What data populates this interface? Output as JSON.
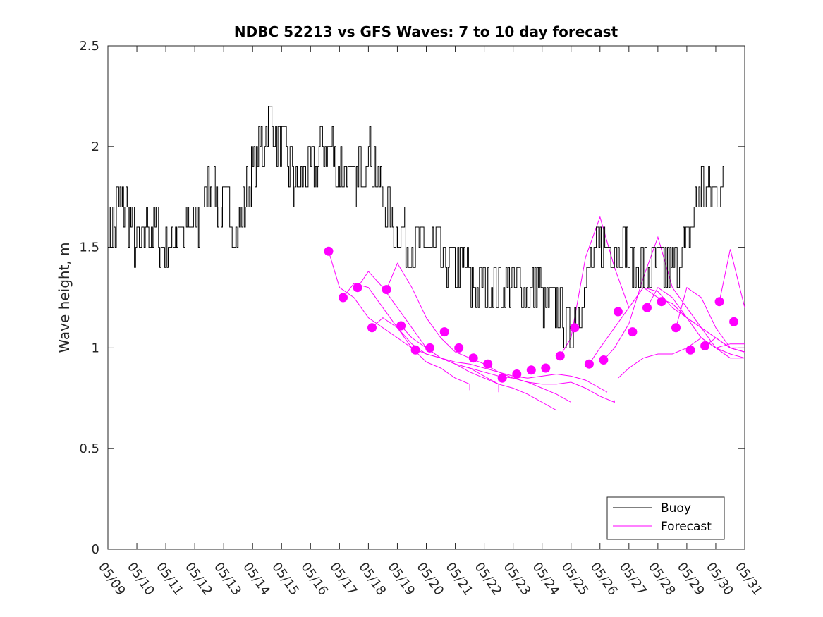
{
  "chart_data": {
    "type": "line",
    "title": "NDBC 52213 vs GFS Waves: 7 to 10 day forecast",
    "xlabel": "",
    "ylabel": "Wave height, m",
    "ylim": [
      0,
      2.5
    ],
    "yticks": [
      0,
      0.5,
      1,
      1.5,
      2,
      2.5
    ],
    "yticklabels": [
      "0",
      "0.5",
      "1",
      "1.5",
      "2",
      "2.5"
    ],
    "xlim": [
      "05/09",
      "05/31"
    ],
    "xticklabels": [
      "05/09",
      "05/10",
      "05/11",
      "05/12",
      "05/13",
      "05/14",
      "05/15",
      "05/16",
      "05/17",
      "05/18",
      "05/19",
      "05/20",
      "05/21",
      "05/22",
      "05/23",
      "05/24",
      "05/25",
      "05/26",
      "05/27",
      "05/28",
      "05/29",
      "05/30",
      "05/31"
    ],
    "grid": false,
    "legend": {
      "placement": "bottom-right",
      "entries": [
        "Buoy",
        "Forecast"
      ]
    },
    "colors": {
      "buoy": "#000000",
      "forecast": "#ff00ff"
    },
    "series": [
      {
        "name": "Buoy",
        "x": [
          "05/09 00:00",
          "05/09 12:00",
          "05/10 00:00",
          "05/10 12:00",
          "05/11 00:00",
          "05/11 12:00",
          "05/12 00:00",
          "05/12 12:00",
          "05/13 00:00",
          "05/13 12:00",
          "05/14 00:00",
          "05/14 12:00",
          "05/15 00:00",
          "05/15 12:00",
          "05/16 00:00",
          "05/16 12:00",
          "05/17 00:00",
          "05/17 12:00",
          "05/18 00:00",
          "05/18 12:00",
          "05/19 00:00",
          "05/19 12:00",
          "05/20 00:00",
          "05/20 12:00",
          "05/21 00:00",
          "05/21 12:00",
          "05/22 00:00",
          "05/22 12:00",
          "05/23 00:00",
          "05/23 12:00",
          "05/24 00:00",
          "05/24 12:00",
          "05/25 00:00",
          "05/25 12:00",
          "05/26 00:00",
          "05/26 12:00",
          "05/27 00:00",
          "05/27 12:00",
          "05/28 00:00",
          "05/28 12:00",
          "05/29 00:00",
          "05/29 12:00",
          "05/30 00:00",
          "05/30 06:00"
        ],
        "y": [
          1.6,
          1.7,
          1.5,
          1.6,
          1.5,
          1.6,
          1.6,
          1.8,
          1.7,
          1.6,
          1.9,
          2.1,
          2.0,
          1.8,
          1.9,
          2.0,
          1.9,
          1.8,
          2.0,
          1.7,
          1.6,
          1.5,
          1.5,
          1.45,
          1.4,
          1.35,
          1.3,
          1.25,
          1.25,
          1.3,
          1.25,
          1.2,
          1.1,
          1.3,
          1.5,
          1.5,
          1.45,
          1.4,
          1.4,
          1.4,
          1.5,
          1.8,
          1.8,
          1.8
        ]
      },
      {
        "name": "Forecast",
        "points": {
          "x": [
            "05/16 15:00",
            "05/17 03:00",
            "05/17 15:00",
            "05/18 03:00",
            "05/18 15:00",
            "05/19 03:00",
            "05/19 15:00",
            "05/20 03:00",
            "05/20 15:00",
            "05/21 03:00",
            "05/21 15:00",
            "05/22 03:00",
            "05/22 15:00",
            "05/23 03:00",
            "05/23 15:00",
            "05/24 03:00",
            "05/24 15:00",
            "05/25 03:00",
            "05/25 15:00",
            "05/26 03:00",
            "05/26 15:00",
            "05/27 03:00",
            "05/27 15:00",
            "05/28 03:00",
            "05/28 15:00",
            "05/29 03:00",
            "05/29 15:00",
            "05/30 03:00",
            "05/30 15:00"
          ],
          "y": [
            1.48,
            1.25,
            1.3,
            1.1,
            1.29,
            1.11,
            0.99,
            1.0,
            1.08,
            1.0,
            0.95,
            0.92,
            0.85,
            0.87,
            0.89,
            0.9,
            0.96,
            1.1,
            0.92,
            0.94,
            1.18,
            1.08,
            1.2,
            1.23,
            1.1,
            0.99,
            1.01,
            1.23,
            1.13
          ]
        },
        "runs": [
          {
            "x": [
              "05/16 15:00",
              "05/17 00:00",
              "05/17 12:00",
              "05/18 00:00",
              "05/18 12:00",
              "05/19 00:00",
              "05/19 12:00",
              "05/20 00:00",
              "05/20 12:00",
              "05/21 00:00",
              "05/21 12:00",
              "05/22 00:00",
              "05/22 12:00",
              "05/23 00:00",
              "05/23 12:00",
              "05/24 00:00",
              "05/24 12:00",
              "05/25 00:00",
              "05/25 12:00",
              "05/26 00:00",
              "05/26 06:00"
            ],
            "y": [
              1.48,
              1.3,
              1.25,
              1.15,
              1.1,
              1.05,
              1.0,
              0.97,
              0.95,
              0.93,
              0.92,
              0.9,
              0.88,
              0.86,
              0.85,
              0.86,
              0.87,
              0.86,
              0.84,
              0.8,
              0.78
            ]
          },
          {
            "x": [
              "05/17 03:00",
              "05/17 12:00",
              "05/18 00:00",
              "05/18 12:00",
              "05/19 00:00",
              "05/19 12:00",
              "05/20 00:00",
              "05/20 12:00",
              "05/21 00:00",
              "05/21 12:00",
              "05/22 00:00",
              "05/22 12:00",
              "05/23 00:00",
              "05/23 12:00",
              "05/24 00:00",
              "05/24 12:00",
              "05/25 00:00",
              "05/25 12:00",
              "05/26 00:00",
              "05/26 12:00",
              "05/26 12:00"
            ],
            "y": [
              1.25,
              1.32,
              1.3,
              1.2,
              1.1,
              1.02,
              0.97,
              0.95,
              0.92,
              0.9,
              0.88,
              0.86,
              0.85,
              0.83,
              0.82,
              0.82,
              0.83,
              0.8,
              0.76,
              0.73,
              0.74
            ]
          },
          {
            "x": [
              "05/17 15:00",
              "05/18 00:00",
              "05/18 12:00",
              "05/19 00:00",
              "05/19 12:00",
              "05/20 00:00",
              "05/20 12:00",
              "05/21 00:00",
              "05/21 12:00",
              "05/22 00:00",
              "05/22 12:00",
              "05/23 00:00",
              "05/23 12:00",
              "05/24 00:00",
              "05/24 12:00"
            ],
            "y": [
              1.3,
              1.38,
              1.3,
              1.2,
              1.1,
              1.0,
              0.95,
              0.92,
              0.88,
              0.85,
              0.82,
              0.8,
              0.77,
              0.73,
              0.69
            ]
          },
          {
            "x": [
              "05/18 03:00",
              "05/18 12:00",
              "05/19 00:00",
              "05/19 12:00",
              "05/20 00:00",
              "05/20 12:00",
              "05/21 00:00",
              "05/21 12:00",
              "05/21 12:00"
            ],
            "y": [
              1.1,
              1.15,
              1.1,
              1.0,
              0.93,
              0.9,
              0.85,
              0.82,
              0.79
            ]
          },
          {
            "x": [
              "05/18 15:00",
              "05/19 00:00",
              "05/19 12:00",
              "05/20 00:00",
              "05/20 12:00",
              "05/21 00:00",
              "05/21 12:00",
              "05/22 00:00",
              "05/22 12:00",
              "05/23 00:00",
              "05/23 12:00",
              "05/24 00:00",
              "05/24 12:00",
              "05/25 00:00"
            ],
            "y": [
              1.29,
              1.42,
              1.3,
              1.15,
              1.05,
              0.98,
              0.95,
              0.92,
              0.88,
              0.85,
              0.83,
              0.8,
              0.77,
              0.73
            ]
          },
          {
            "x": [
              "05/19 03:00",
              "05/19 12:00",
              "05/20 00:00",
              "05/20 12:00",
              "05/21 00:00",
              "05/21 12:00",
              "05/22 00:00",
              "05/22 12:00",
              "05/22 12:00"
            ],
            "y": [
              1.11,
              1.05,
              1.0,
              0.95,
              0.92,
              0.9,
              0.86,
              0.82,
              0.78
            ]
          },
          {
            "x": [
              "05/24 15:00",
              "05/25 00:00",
              "05/25 12:00",
              "05/26 00:00",
              "05/26 12:00",
              "05/27 00:00",
              "05/27 12:00",
              "05/28 00:00",
              "05/28 12:00",
              "05/29 00:00",
              "05/29 12:00",
              "05/30 00:00",
              "05/30 12:00",
              "05/31 00:00"
            ],
            "y": [
              0.96,
              1.05,
              1.45,
              1.65,
              1.4,
              1.2,
              1.3,
              1.25,
              1.22,
              1.15,
              1.1,
              1.05,
              1.0,
              0.98
            ]
          },
          {
            "x": [
              "05/25 15:00",
              "05/26 00:00",
              "05/26 12:00",
              "05/27 00:00",
              "05/27 12:00",
              "05/28 00:00",
              "05/28 12:00",
              "05/29 00:00",
              "05/29 12:00",
              "05/30 00:00",
              "05/30 12:00",
              "05/31 00:00"
            ],
            "y": [
              0.92,
              1.0,
              1.1,
              1.2,
              1.3,
              1.28,
              1.2,
              1.15,
              1.1,
              1.05,
              1.0,
              1.0
            ]
          },
          {
            "x": [
              "05/26 03:00",
              "05/26 12:00",
              "05/27 00:00",
              "05/27 12:00",
              "05/28 00:00",
              "05/28 12:00",
              "05/29 00:00",
              "05/29 12:00",
              "05/30 00:00",
              "05/30 12:00",
              "05/31 00:00"
            ],
            "y": [
              0.94,
              1.0,
              1.12,
              1.35,
              1.55,
              1.3,
              1.2,
              1.1,
              1.0,
              0.97,
              0.95
            ]
          },
          {
            "x": [
              "05/26 15:00",
              "05/27 00:00",
              "05/27 12:00",
              "05/28 00:00",
              "05/28 12:00",
              "05/29 00:00",
              "05/29 12:00",
              "05/30 00:00",
              "05/30 12:00",
              "05/31 00:00"
            ],
            "y": [
              0.85,
              0.9,
              0.95,
              0.97,
              0.97,
              1.0,
              1.05,
              1.0,
              1.02,
              1.02
            ]
          },
          {
            "x": [
              "05/27 15:00",
              "05/28 00:00",
              "05/28 12:00",
              "05/29 00:00",
              "05/29 12:00",
              "05/30 00:00",
              "05/30 12:00",
              "05/31 00:00"
            ],
            "y": [
              1.2,
              1.3,
              1.25,
              1.15,
              1.05,
              1.0,
              0.95,
              0.95
            ]
          },
          {
            "x": [
              "05/28 15:00",
              "05/29 00:00",
              "05/29 12:00",
              "05/30 00:00",
              "05/30 12:00",
              "05/31 00:00"
            ],
            "y": [
              1.1,
              1.3,
              1.25,
              1.1,
              1.0,
              0.98
            ]
          },
          {
            "x": [
              "05/29 15:00",
              "05/30 00:00",
              "05/30 12:00",
              "05/31 00:00"
            ],
            "y": [
              1.01,
              1.05,
              1.0,
              0.98
            ]
          },
          {
            "x": [
              "05/30 03:00",
              "05/30 12:00",
              "05/31 00:00"
            ],
            "y": [
              1.23,
              1.49,
              1.2
            ]
          }
        ]
      }
    ]
  }
}
